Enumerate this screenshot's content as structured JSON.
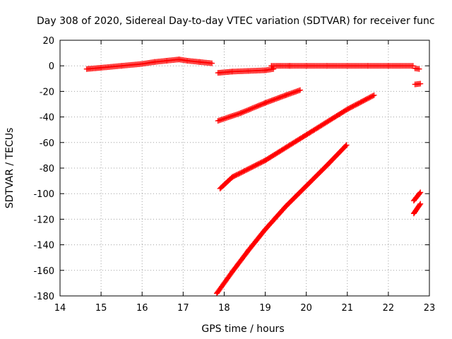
{
  "chart_data": {
    "type": "scatter",
    "title": "Day 308 of 2020, Sidereal Day-to-day VTEC variation (SDTVAR) for receiver func",
    "xlabel": "GPS time / hours",
    "ylabel": "SDTVAR / TECUs",
    "xlim": [
      14,
      23
    ],
    "ylim": [
      -180,
      20
    ],
    "xticks": [
      14,
      15,
      16,
      17,
      18,
      19,
      20,
      21,
      22,
      23
    ],
    "yticks": [
      20,
      0,
      -20,
      -40,
      -60,
      -80,
      -100,
      -120,
      -140,
      -160,
      -180
    ],
    "xtick_labels": [
      "14",
      "15",
      "16",
      "17",
      "18",
      "19",
      "20",
      "21",
      "22",
      "23"
    ],
    "ytick_labels": [
      "20",
      "0",
      "-20",
      "-40",
      "-60",
      "-80",
      "-100",
      "-120",
      "-140",
      "-160",
      "-180"
    ],
    "grid": true,
    "marker_color": "#ff0000",
    "series": [
      {
        "x": [
          14.65,
          15.0,
          15.5,
          16.0,
          16.3,
          16.6,
          16.9,
          17.1,
          17.4,
          17.7
        ],
        "y": [
          -2.5,
          -1.5,
          0,
          1.5,
          3,
          4,
          5,
          4,
          3,
          2
        ]
      },
      {
        "x": [
          17.85,
          18.2,
          18.6,
          19.0,
          19.2
        ],
        "y": [
          -5.5,
          -4.5,
          -4,
          -3.5,
          -2.5
        ]
      },
      {
        "x": [
          19.15,
          19.6,
          20.0,
          20.5,
          21.0,
          21.5,
          22.0,
          22.6
        ],
        "y": [
          0,
          0,
          0,
          0,
          0,
          0,
          0,
          0
        ]
      },
      {
        "x": [
          22.65,
          22.75
        ],
        "y": [
          -2,
          -2.5
        ]
      },
      {
        "x": [
          22.65,
          22.78
        ],
        "y": [
          -14.5,
          -14
        ]
      },
      {
        "x": [
          17.85,
          18.4,
          19.0,
          19.5,
          19.85
        ],
        "y": [
          -43,
          -37,
          -29,
          -23,
          -19
        ]
      },
      {
        "x": [
          17.9,
          18.2,
          19.0,
          20.0,
          21.0,
          21.65
        ],
        "y": [
          -96,
          -87,
          -74,
          -54,
          -34,
          -23
        ]
      },
      {
        "x": [
          17.82,
          18.2,
          18.6,
          19.0,
          19.5,
          20.0,
          20.5,
          20.98
        ],
        "y": [
          -178,
          -161,
          -144,
          -128,
          -110,
          -94,
          -78,
          -62
        ]
      },
      {
        "x": [
          22.62,
          22.78
        ],
        "y": [
          -105.5,
          -99
        ]
      },
      {
        "x": [
          22.62,
          22.78
        ],
        "y": [
          -115.5,
          -108
        ]
      }
    ]
  }
}
